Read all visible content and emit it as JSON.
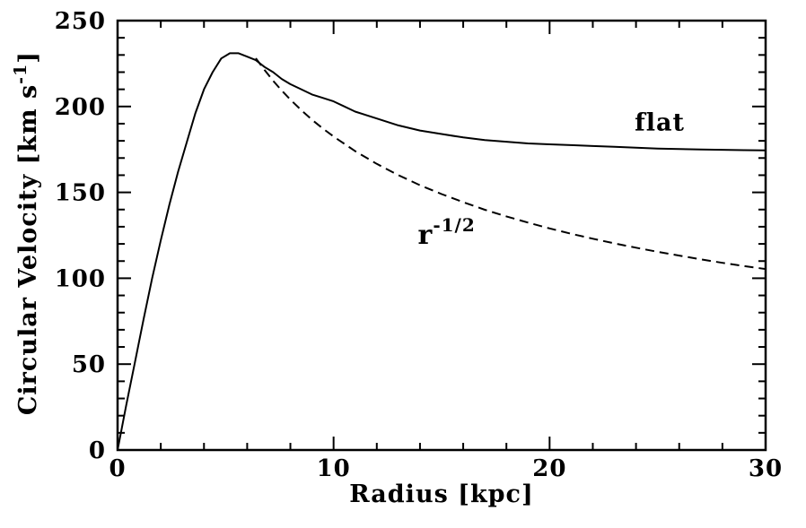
{
  "chart_data": {
    "type": "line",
    "title": "",
    "xlabel": "Radius [kpc]",
    "ylabel": "Circular Velocity [km s⁻¹]",
    "ylabel_parts": {
      "main": "Circular Velocity [km s",
      "sup": "-1",
      "close": "]"
    },
    "xlim": [
      0,
      30
    ],
    "ylim": [
      0,
      250
    ],
    "x_major_ticks": [
      0,
      10,
      20,
      30
    ],
    "x_minor_tick_step": 2,
    "y_major_ticks": [
      0,
      50,
      100,
      150,
      200,
      250
    ],
    "y_minor_tick_step": 10,
    "grid": false,
    "legend_position": "none",
    "background_color": "#ffffff",
    "ink_color": "#000000",
    "series": [
      {
        "name": "flat",
        "line_style": "solid",
        "label": {
          "text": "flat",
          "x": 25.1,
          "y": 186
        },
        "points": [
          [
            0,
            0
          ],
          [
            0.4,
            26
          ],
          [
            0.8,
            51
          ],
          [
            1.2,
            76
          ],
          [
            1.6,
            100
          ],
          [
            2.0,
            122
          ],
          [
            2.4,
            143
          ],
          [
            2.8,
            162
          ],
          [
            3.2,
            179
          ],
          [
            3.6,
            196
          ],
          [
            4.0,
            210
          ],
          [
            4.4,
            220
          ],
          [
            4.8,
            228
          ],
          [
            5.2,
            231
          ],
          [
            5.6,
            231
          ],
          [
            6.0,
            229
          ],
          [
            6.4,
            227
          ],
          [
            6.8,
            223
          ],
          [
            7.2,
            220
          ],
          [
            7.6,
            216
          ],
          [
            8.0,
            213
          ],
          [
            8.5,
            210
          ],
          [
            9.0,
            207
          ],
          [
            9.5,
            205
          ],
          [
            10,
            203
          ],
          [
            11,
            197
          ],
          [
            12,
            193
          ],
          [
            13,
            189
          ],
          [
            14,
            186
          ],
          [
            15,
            184
          ],
          [
            16,
            182
          ],
          [
            17,
            180.5
          ],
          [
            18,
            179.5
          ],
          [
            19,
            178.5
          ],
          [
            20,
            178
          ],
          [
            21,
            177.5
          ],
          [
            22,
            177
          ],
          [
            23,
            176.5
          ],
          [
            24,
            176
          ],
          [
            25,
            175.5
          ],
          [
            26,
            175.2
          ],
          [
            27,
            175
          ],
          [
            28,
            174.8
          ],
          [
            29,
            174.6
          ],
          [
            30,
            174.5
          ]
        ]
      },
      {
        "name": "r^-1/2",
        "line_style": "dashed",
        "label": {
          "base": "r",
          "sup": "-1/2",
          "x": 13.9,
          "y": 120
        },
        "points": [
          [
            6.4,
            228.1
          ],
          [
            6.8,
            221.3
          ],
          [
            7.2,
            215.0
          ],
          [
            7.6,
            209.3
          ],
          [
            8.0,
            204.0
          ],
          [
            8.5,
            197.9
          ],
          [
            9.0,
            192.3
          ],
          [
            9.5,
            187.2
          ],
          [
            10,
            182.5
          ],
          [
            11,
            174.0
          ],
          [
            12,
            166.6
          ],
          [
            13,
            160.0
          ],
          [
            14,
            154.2
          ],
          [
            15,
            149.0
          ],
          [
            16,
            144.3
          ],
          [
            17,
            139.9
          ],
          [
            18,
            136.0
          ],
          [
            19,
            132.4
          ],
          [
            20,
            129.0
          ],
          [
            21,
            125.9
          ],
          [
            22,
            123.0
          ],
          [
            23,
            120.3
          ],
          [
            24,
            117.8
          ],
          [
            25,
            115.4
          ],
          [
            26,
            113.2
          ],
          [
            27,
            111.0
          ],
          [
            28,
            109.0
          ],
          [
            29,
            107.1
          ],
          [
            30,
            105.4
          ]
        ]
      }
    ]
  }
}
